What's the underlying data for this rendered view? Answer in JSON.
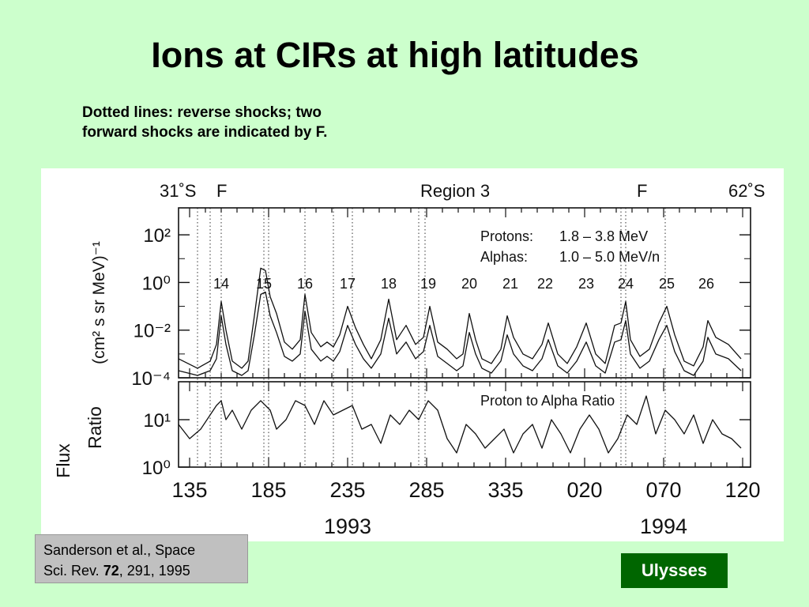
{
  "slide": {
    "title": "Ions at CIRs at high latitudes",
    "caption_line1": "Dotted lines: reverse shocks; two",
    "caption_line2": "forward shocks are indicated by F.",
    "citation_line1": "Sanderson et al., Space",
    "citation_line2_prefix": "Sci. Rev. ",
    "citation_volume": "72",
    "citation_line2_suffix": ", 291, 1995",
    "badge": "Ulysses"
  },
  "chart_data": {
    "type": "line",
    "top_annotations": {
      "left_latitude": "31˚S",
      "left_marker": "F",
      "region": "Region 3",
      "right_marker": "F",
      "right_latitude": "62˚S"
    },
    "flux_panel": {
      "ylabel_main": "Flux",
      "ylabel_units": "(cm² s sr MeV)⁻¹",
      "yticks": [
        "10²",
        "10⁰",
        "10⁻²",
        "10⁻⁴"
      ],
      "ylim_log10": [
        -4,
        2.8
      ],
      "legend": [
        {
          "species": "Protons:",
          "range": "1.8 – 3.8 MeV"
        },
        {
          "species": "Alphas:",
          "range": "1.0 – 5.0 MeV/n"
        }
      ],
      "cir_numbers": [
        {
          "label": "14",
          "day": 155
        },
        {
          "label": "15",
          "day": 182
        },
        {
          "label": "16",
          "day": 208
        },
        {
          "label": "17",
          "day": 235
        },
        {
          "label": "18",
          "day": 261
        },
        {
          "label": "19",
          "day": 286
        },
        {
          "label": "20",
          "day": 312
        },
        {
          "label": "21",
          "day": 338
        },
        {
          "label": "22",
          "day": 360
        },
        {
          "label": "23",
          "day": 386
        },
        {
          "label": "24",
          "day": 411
        },
        {
          "label": "25",
          "day": 437
        },
        {
          "label": "26",
          "day": 462
        }
      ],
      "series": [
        {
          "name": "Protons",
          "x": [
            128,
            140,
            148,
            152,
            155,
            158,
            162,
            168,
            172,
            176,
            180,
            183,
            186,
            190,
            195,
            200,
            205,
            208,
            212,
            218,
            222,
            226,
            230,
            235,
            240,
            245,
            250,
            256,
            261,
            266,
            272,
            278,
            283,
            287,
            292,
            298,
            304,
            308,
            312,
            316,
            320,
            326,
            332,
            336,
            340,
            346,
            352,
            358,
            362,
            368,
            374,
            380,
            386,
            392,
            398,
            404,
            408,
            411,
            414,
            420,
            426,
            432,
            437,
            442,
            448,
            454,
            460,
            463,
            468,
            476,
            484
          ],
          "values": [
            -3.2,
            -3.6,
            -3.3,
            -2.6,
            -0.8,
            -2.0,
            -3.3,
            -3.6,
            -3.3,
            -1.4,
            0.6,
            0.5,
            -0.6,
            -1.3,
            -2.5,
            -2.8,
            -2.4,
            -0.5,
            -2.1,
            -2.7,
            -2.5,
            -2.7,
            -2.2,
            -1.0,
            -1.9,
            -2.6,
            -3.2,
            -2.4,
            -0.7,
            -2.4,
            -1.8,
            -2.6,
            -2.3,
            -1.0,
            -2.5,
            -2.8,
            -3.2,
            -3.0,
            -1.3,
            -2.4,
            -3.2,
            -3.4,
            -2.8,
            -1.4,
            -2.3,
            -3.0,
            -3.2,
            -2.6,
            -1.7,
            -3.0,
            -3.4,
            -2.7,
            -1.7,
            -3.0,
            -3.4,
            -1.8,
            -1.7,
            -0.8,
            -2.4,
            -3.1,
            -2.8,
            -1.7,
            -1.0,
            -2.2,
            -3.3,
            -3.5,
            -2.7,
            -1.6,
            -2.3,
            -2.6,
            -3.2
          ]
        },
        {
          "name": "Alphas",
          "x": [
            128,
            140,
            148,
            152,
            155,
            158,
            162,
            168,
            172,
            176,
            180,
            183,
            186,
            190,
            195,
            200,
            205,
            208,
            212,
            218,
            222,
            226,
            230,
            235,
            240,
            245,
            250,
            256,
            261,
            266,
            272,
            278,
            283,
            287,
            292,
            298,
            304,
            308,
            312,
            316,
            320,
            326,
            332,
            336,
            340,
            346,
            352,
            358,
            362,
            368,
            374,
            380,
            386,
            392,
            398,
            404,
            408,
            411,
            414,
            420,
            426,
            432,
            437,
            442,
            448,
            454,
            460,
            463,
            468,
            476,
            484
          ],
          "values": [
            -3.7,
            -3.9,
            -3.7,
            -3.2,
            -1.4,
            -2.6,
            -3.7,
            -3.9,
            -3.7,
            -2.2,
            -0.5,
            -0.4,
            -1.4,
            -2.1,
            -3.1,
            -3.3,
            -3.0,
            -1.2,
            -2.8,
            -3.3,
            -3.1,
            -3.3,
            -2.9,
            -1.8,
            -2.6,
            -3.2,
            -3.6,
            -3.0,
            -1.5,
            -3.0,
            -2.5,
            -3.2,
            -2.9,
            -1.8,
            -3.1,
            -3.4,
            -3.7,
            -3.5,
            -2.1,
            -3.0,
            -3.6,
            -3.8,
            -3.3,
            -2.2,
            -3.0,
            -3.5,
            -3.7,
            -3.2,
            -2.4,
            -3.5,
            -3.8,
            -3.3,
            -2.5,
            -3.5,
            -3.8,
            -2.5,
            -2.4,
            -1.6,
            -3.0,
            -3.6,
            -3.3,
            -2.4,
            -1.8,
            -2.9,
            -3.7,
            -3.9,
            -3.3,
            -2.3,
            -3.0,
            -3.2,
            -3.7
          ]
        }
      ]
    },
    "ratio_panel": {
      "ylabel": "Ratio",
      "title": "Proton to Alpha Ratio",
      "yticks": [
        "10¹",
        "10⁰"
      ],
      "ylim_log10": [
        0,
        1.7
      ],
      "series": [
        {
          "name": "Proton to Alpha Ratio",
          "x": [
            128,
            135,
            142,
            148,
            152,
            155,
            158,
            162,
            168,
            174,
            180,
            186,
            190,
            196,
            202,
            208,
            214,
            220,
            226,
            232,
            238,
            244,
            250,
            256,
            262,
            268,
            274,
            280,
            286,
            292,
            298,
            304,
            310,
            316,
            322,
            328,
            334,
            340,
            346,
            352,
            358,
            364,
            370,
            376,
            382,
            388,
            394,
            400,
            406,
            412,
            418,
            424,
            430,
            436,
            442,
            448,
            454,
            460,
            466,
            472,
            478,
            484
          ],
          "values": [
            0.9,
            0.6,
            0.8,
            1.1,
            1.3,
            1.4,
            1.0,
            1.2,
            0.8,
            1.2,
            1.4,
            1.2,
            0.8,
            1.0,
            1.4,
            1.3,
            0.9,
            1.4,
            1.1,
            1.2,
            1.3,
            0.8,
            0.9,
            0.5,
            1.1,
            0.9,
            1.2,
            1.0,
            1.4,
            1.2,
            0.6,
            0.3,
            0.9,
            0.7,
            0.4,
            0.6,
            0.8,
            0.3,
            0.7,
            0.9,
            0.4,
            1.0,
            0.7,
            0.3,
            0.8,
            1.1,
            0.8,
            0.3,
            0.6,
            1.1,
            0.9,
            1.5,
            0.7,
            1.2,
            1.0,
            0.7,
            1.1,
            0.5,
            1.0,
            0.7,
            0.6,
            0.4
          ]
        }
      ]
    },
    "x_axis": {
      "xlim": [
        128,
        490
      ],
      "tick_labels": [
        {
          "label": "135",
          "day": 135
        },
        {
          "label": "185",
          "day": 185
        },
        {
          "label": "235",
          "day": 235
        },
        {
          "label": "285",
          "day": 285
        },
        {
          "label": "335",
          "day": 335
        },
        {
          "label": "020",
          "day": 385
        },
        {
          "label": "070",
          "day": 435
        },
        {
          "label": "120",
          "day": 485
        }
      ],
      "year_labels": [
        {
          "label": "1993",
          "day": 235
        },
        {
          "label": "1994",
          "day": 435
        }
      ]
    },
    "reverse_shocks_day": [
      140,
      148,
      182,
      185,
      208,
      226,
      238,
      280,
      284,
      408,
      411
    ],
    "forward_shocks_day": [
      155,
      436
    ]
  }
}
